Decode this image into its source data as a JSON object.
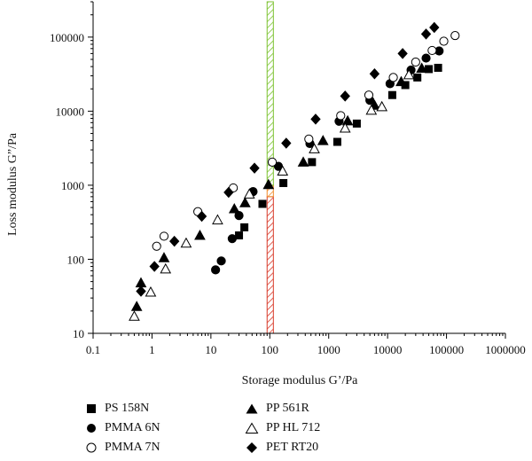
{
  "chart_data": {
    "type": "scatter",
    "xlabel": "Storage modulus G’/Pa",
    "ylabel": "Loss modulus G”/Pa",
    "xscale": "log",
    "yscale": "log",
    "xlim": [
      0.1,
      1000000
    ],
    "ylim": [
      10,
      300000
    ],
    "x_ticks": [
      "0.1",
      "1",
      "10",
      "100",
      "1000",
      "10000",
      "100000",
      "1000000"
    ],
    "y_ticks": [
      "10",
      "100",
      "1000",
      "10000",
      "100000"
    ],
    "grid": false,
    "legend_position": "bottom",
    "bands": [
      {
        "x_range": [
          90,
          115
        ],
        "y_range": [
          10,
          700
        ],
        "color": "#d83a2a",
        "pattern": "hatch"
      },
      {
        "x_range": [
          90,
          115
        ],
        "y_range": [
          700,
          1000
        ],
        "color": "#f08a2a",
        "pattern": "hatch"
      },
      {
        "x_range": [
          90,
          115
        ],
        "y_range": [
          1000,
          300000
        ],
        "color": "#7cc230",
        "pattern": "hatch"
      }
    ],
    "series": [
      {
        "name": "PS 158N",
        "marker": "square",
        "fill": "#000000",
        "points": [
          [
            75,
            560
          ],
          [
            30,
            210
          ],
          [
            37,
            270
          ],
          [
            170,
            1070
          ],
          [
            520,
            2050
          ],
          [
            1400,
            3850
          ],
          [
            3000,
            6800
          ],
          [
            12000,
            16500
          ],
          [
            20000,
            22500
          ],
          [
            32000,
            28500
          ],
          [
            50000,
            37000
          ],
          [
            72000,
            38500
          ]
        ]
      },
      {
        "name": "PMMA 6N",
        "marker": "circle",
        "fill": "#000000",
        "points": [
          [
            12,
            72
          ],
          [
            15,
            95
          ],
          [
            23,
            190
          ],
          [
            30,
            390
          ],
          [
            52,
            820
          ],
          [
            140,
            1800
          ],
          [
            480,
            3650
          ],
          [
            1500,
            7300
          ],
          [
            5000,
            14000
          ],
          [
            11000,
            23500
          ],
          [
            25000,
            36000
          ],
          [
            45000,
            52000
          ],
          [
            75000,
            65000
          ]
        ]
      },
      {
        "name": "PMMA 7N",
        "marker": "circle",
        "fill": "#ffffff",
        "points": [
          [
            1.2,
            150
          ],
          [
            1.6,
            205
          ],
          [
            6,
            440
          ],
          [
            24,
            920
          ],
          [
            110,
            2050
          ],
          [
            460,
            4200
          ],
          [
            1600,
            8700
          ],
          [
            4800,
            16500
          ],
          [
            12500,
            28500
          ],
          [
            30000,
            46000
          ],
          [
            57000,
            66000
          ],
          [
            90000,
            88000
          ],
          [
            140000,
            105000
          ]
        ]
      },
      {
        "name": "PP 561R",
        "marker": "triangle",
        "fill": "#000000",
        "points": [
          [
            0.55,
            23
          ],
          [
            0.65,
            48
          ],
          [
            1.6,
            105
          ],
          [
            6.5,
            210
          ],
          [
            25,
            480
          ],
          [
            38,
            580
          ],
          [
            95,
            1020
          ],
          [
            370,
            2050
          ],
          [
            800,
            4000
          ],
          [
            2100,
            7400
          ],
          [
            6000,
            12000
          ],
          [
            17000,
            25000
          ],
          [
            38000,
            38000
          ]
        ]
      },
      {
        "name": "PP HL 712",
        "marker": "triangle",
        "fill": "#ffffff",
        "points": [
          [
            0.5,
            17
          ],
          [
            0.95,
            36
          ],
          [
            1.7,
            74
          ],
          [
            3.8,
            165
          ],
          [
            13,
            340
          ],
          [
            45,
            760
          ],
          [
            165,
            1550
          ],
          [
            570,
            3100
          ],
          [
            1900,
            5900
          ],
          [
            5300,
            10300
          ],
          [
            8000,
            11500
          ],
          [
            23000,
            31000
          ]
        ]
      },
      {
        "name": "PET RT20",
        "marker": "diamond",
        "fill": "#000000",
        "points": [
          [
            0.65,
            37
          ],
          [
            1.1,
            80
          ],
          [
            2.4,
            175
          ],
          [
            7,
            380
          ],
          [
            20,
            800
          ],
          [
            55,
            1700
          ],
          [
            190,
            3700
          ],
          [
            600,
            7800
          ],
          [
            1900,
            16000
          ],
          [
            6000,
            32000
          ],
          [
            18000,
            60000
          ],
          [
            45000,
            110000
          ],
          [
            62000,
            135000
          ]
        ]
      }
    ]
  }
}
